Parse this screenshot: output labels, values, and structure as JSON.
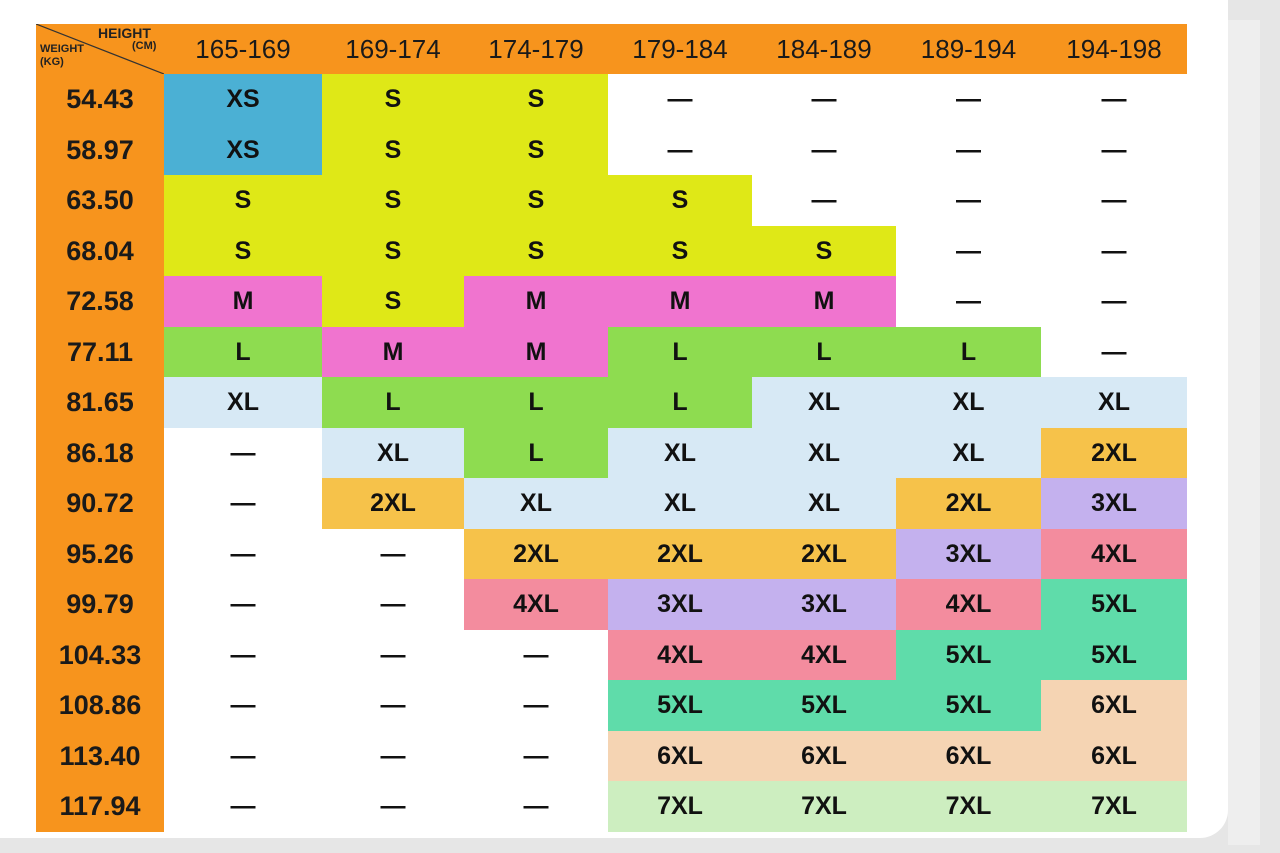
{
  "corner": {
    "height_label": "HEIGHT",
    "height_unit": "(CM)",
    "weight_label": "WEIGHT",
    "weight_unit": "(KG)"
  },
  "heights": [
    "165-169",
    "169-174",
    "174-179",
    "179-184",
    "184-189",
    "189-194",
    "194-198"
  ],
  "weights": [
    "54.43",
    "58.97",
    "63.50",
    "68.04",
    "72.58",
    "77.11",
    "81.65",
    "86.18",
    "90.72",
    "95.26",
    "99.79",
    "104.33",
    "108.86",
    "113.40",
    "117.94"
  ],
  "rows": [
    [
      "XS",
      "S",
      "S",
      "—",
      "—",
      "—",
      "—"
    ],
    [
      "XS",
      "S",
      "S",
      "—",
      "—",
      "—",
      "—"
    ],
    [
      "S",
      "S",
      "S",
      "S",
      "—",
      "—",
      "—"
    ],
    [
      "S",
      "S",
      "S",
      "S",
      "S",
      "—",
      "—"
    ],
    [
      "M",
      "S",
      "M",
      "M",
      "M",
      "—",
      "—"
    ],
    [
      "L",
      "M",
      "M",
      "L",
      "L",
      "L",
      "—"
    ],
    [
      "XL",
      "L",
      "L",
      "L",
      "XL",
      "XL",
      "XL"
    ],
    [
      "—",
      "XL",
      "L",
      "XL",
      "XL",
      "XL",
      "2XL"
    ],
    [
      "—",
      "2XL",
      "XL",
      "XL",
      "XL",
      "2XL",
      "3XL"
    ],
    [
      "—",
      "—",
      "2XL",
      "2XL",
      "2XL",
      "3XL",
      "4XL"
    ],
    [
      "—",
      "—",
      "4XL",
      "3XL",
      "3XL",
      "4XL",
      "5XL"
    ],
    [
      "—",
      "—",
      "—",
      "4XL",
      "4XL",
      "5XL",
      "5XL"
    ],
    [
      "—",
      "—",
      "—",
      "5XL",
      "5XL",
      "5XL",
      "6XL"
    ],
    [
      "—",
      "—",
      "—",
      "6XL",
      "6XL",
      "6XL",
      "6XL"
    ],
    [
      "—",
      "—",
      "—",
      "7XL",
      "7XL",
      "7XL",
      "7XL"
    ]
  ],
  "colors": {
    "header": "#f7941d",
    "XS": "#4bb0d4",
    "S": "#dfe817",
    "M": "#f074cf",
    "L": "#8edc50",
    "XL": "#d7e9f5",
    "2XL": "#f6c24a",
    "3XL": "#c4b1ee",
    "4XL": "#f38c9e",
    "5XL": "#5fdcaa",
    "6XL": "#f5d4b3",
    "7XL": "#cdeec0",
    "—": "#ffffff"
  }
}
